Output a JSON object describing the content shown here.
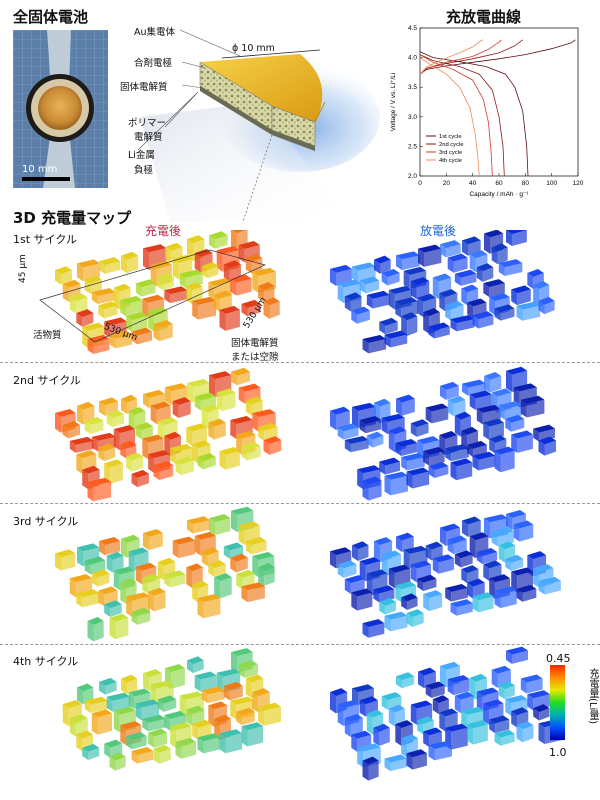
{
  "header": {
    "left_title": "全固体電池",
    "right_title": "充放電曲線",
    "map_title": "3D 充電量マップ"
  },
  "photo": {
    "scale_label": "10 mm"
  },
  "schematic": {
    "diameter_label": "ϕ 10 mm",
    "labels": {
      "au": "Au集電体",
      "composite": "合剤電極",
      "solid_electrolyte": "固体電解質",
      "polymer_1": "ポリマー",
      "polymer_2": "電解質",
      "li_metal_1": "Li金属",
      "li_metal_2": "負極"
    }
  },
  "maps": {
    "charged_label": "充電後",
    "discharged_label": "放電後",
    "cycles": [
      "1st サイクル",
      "2nd サイクル",
      "3rd サイクル",
      "4th サイクル"
    ],
    "dims": {
      "height": "45 μm",
      "depth": "530 μm",
      "width": "530 μm"
    },
    "active_material": "活物質",
    "electrolyte_1": "固体電解質",
    "electrolyte_2": "または空隙"
  },
  "colorbar": {
    "max": "0.45",
    "min": "1.0",
    "label": "充電量(Li量)",
    "colors": [
      "#ff2200",
      "#ff8c00",
      "#e8e800",
      "#22dd22",
      "#00b0b0",
      "#0050ff",
      "#0000aa"
    ]
  },
  "chart_data": {
    "type": "line",
    "xlabel": "Capacity / mAh · g⁻¹",
    "ylabel": "Voltage / V vs. Li⁺/Li",
    "xlim": [
      0,
      120
    ],
    "ylim": [
      2.0,
      4.5
    ],
    "xticks": [
      0,
      20,
      40,
      60,
      80,
      100,
      120
    ],
    "yticks": [
      "2.0",
      "2.5",
      "3.0",
      "3.5",
      "4.0",
      "4.5"
    ],
    "legend_position": "bottom-left",
    "series": [
      {
        "name": "1st cycle",
        "color": "#5a0f14",
        "charge": [
          [
            0,
            3.72
          ],
          [
            5,
            3.8
          ],
          [
            20,
            3.86
          ],
          [
            40,
            3.92
          ],
          [
            60,
            3.98
          ],
          [
            80,
            4.05
          ],
          [
            100,
            4.15
          ],
          [
            115,
            4.25
          ],
          [
            118,
            4.3
          ]
        ],
        "discharge": [
          [
            0,
            4.1
          ],
          [
            10,
            4.0
          ],
          [
            30,
            3.93
          ],
          [
            50,
            3.85
          ],
          [
            65,
            3.72
          ],
          [
            72,
            3.5
          ],
          [
            78,
            3.1
          ],
          [
            81,
            2.5
          ],
          [
            82,
            2.0
          ]
        ]
      },
      {
        "name": "2nd cycle",
        "color": "#8b1a1a",
        "charge": [
          [
            0,
            3.72
          ],
          [
            5,
            3.82
          ],
          [
            20,
            3.9
          ],
          [
            40,
            3.98
          ],
          [
            60,
            4.08
          ],
          [
            72,
            4.2
          ],
          [
            78,
            4.3
          ]
        ],
        "discharge": [
          [
            0,
            4.05
          ],
          [
            10,
            3.95
          ],
          [
            30,
            3.85
          ],
          [
            45,
            3.72
          ],
          [
            55,
            3.45
          ],
          [
            60,
            3.0
          ],
          [
            63,
            2.5
          ],
          [
            64,
            2.0
          ]
        ]
      },
      {
        "name": "3rd cycle",
        "color": "#d23a2a",
        "charge": [
          [
            0,
            3.72
          ],
          [
            5,
            3.82
          ],
          [
            20,
            3.92
          ],
          [
            40,
            4.02
          ],
          [
            52,
            4.14
          ],
          [
            60,
            4.26
          ],
          [
            62,
            4.3
          ]
        ],
        "discharge": [
          [
            0,
            4.05
          ],
          [
            10,
            3.92
          ],
          [
            25,
            3.8
          ],
          [
            40,
            3.62
          ],
          [
            48,
            3.3
          ],
          [
            52,
            2.9
          ],
          [
            54,
            2.4
          ],
          [
            55,
            2.0
          ]
        ]
      },
      {
        "name": "4th cycle",
        "color": "#f08a5a",
        "charge": [
          [
            0,
            3.72
          ],
          [
            5,
            3.84
          ],
          [
            15,
            3.95
          ],
          [
            30,
            4.08
          ],
          [
            40,
            4.18
          ],
          [
            46,
            4.28
          ],
          [
            48,
            4.3
          ]
        ],
        "discharge": [
          [
            0,
            4.0
          ],
          [
            8,
            3.88
          ],
          [
            20,
            3.72
          ],
          [
            30,
            3.5
          ],
          [
            38,
            3.15
          ],
          [
            42,
            2.7
          ],
          [
            44,
            2.3
          ],
          [
            45,
            2.0
          ]
        ]
      }
    ]
  }
}
